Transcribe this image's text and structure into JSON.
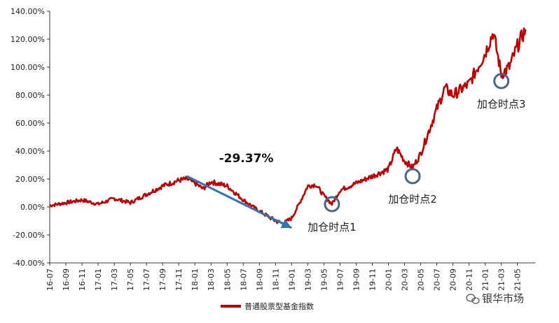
{
  "chart_data": {
    "type": "line",
    "title": "",
    "xlabel": "",
    "ylabel": "",
    "ylim": [
      -40,
      140
    ],
    "y_ticks": [
      "140.00%",
      "120.00%",
      "100.00%",
      "80.00%",
      "60.00%",
      "40.00%",
      "20.00%",
      "0.00%",
      "-20.00%",
      "-40.00%"
    ],
    "x_ticks": [
      "16-07",
      "16-09",
      "16-11",
      "17-01",
      "17-03",
      "17-05",
      "17-07",
      "17-09",
      "17-11",
      "18-01",
      "18-03",
      "18-05",
      "18-07",
      "18-09",
      "18-11",
      "19-01",
      "19-03",
      "19-05",
      "19-07",
      "19-09",
      "19-11",
      "20-01",
      "20-03",
      "20-05",
      "20-07",
      "20-09",
      "20-11",
      "21-01",
      "21-03",
      "21-05"
    ],
    "grid": false,
    "legend_position": "bottom",
    "series": [
      {
        "name": "普通股票型基金指数",
        "color": "#c00000",
        "x": [
          "16-07",
          "16-09",
          "16-11",
          "17-01",
          "17-03",
          "17-05",
          "17-07",
          "17-09",
          "17-11",
          "17-12",
          "18-01",
          "18-02",
          "18-03",
          "18-05",
          "18-07",
          "18-09",
          "18-11",
          "18-12",
          "19-01",
          "19-02",
          "19-03",
          "19-04",
          "19-05",
          "19-06",
          "19-07",
          "19-09",
          "19-11",
          "20-01",
          "20-02",
          "20-03",
          "20-04",
          "20-05",
          "20-07",
          "20-08",
          "20-09",
          "20-11",
          "21-01",
          "21-02",
          "21-03",
          "21-04",
          "21-05",
          "21-06"
        ],
        "values": [
          1,
          3,
          5,
          2,
          6,
          3,
          9,
          15,
          19,
          20,
          17,
          13,
          18,
          15,
          5,
          -3,
          -10,
          -12,
          -8,
          3,
          15,
          16,
          8,
          2,
          12,
          17,
          22,
          27,
          42,
          33,
          28,
          38,
          70,
          85,
          80,
          88,
          110,
          125,
          95,
          100,
          115,
          127
        ]
      }
    ],
    "annotations": [
      {
        "text": "-29.37%"
      },
      {
        "text": "加仓时点1",
        "x": "19-06",
        "y": 2
      },
      {
        "text": "加仓时点2",
        "x": "20-04",
        "y": 22
      },
      {
        "text": "加仓时点3",
        "x": "21-03",
        "y": 90
      }
    ],
    "arrow": {
      "from": {
        "x": "17-12",
        "y": 22
      },
      "to": {
        "x": "19-01",
        "y": -15
      },
      "color": "#2e75b6"
    }
  },
  "watermark": "银华市场"
}
